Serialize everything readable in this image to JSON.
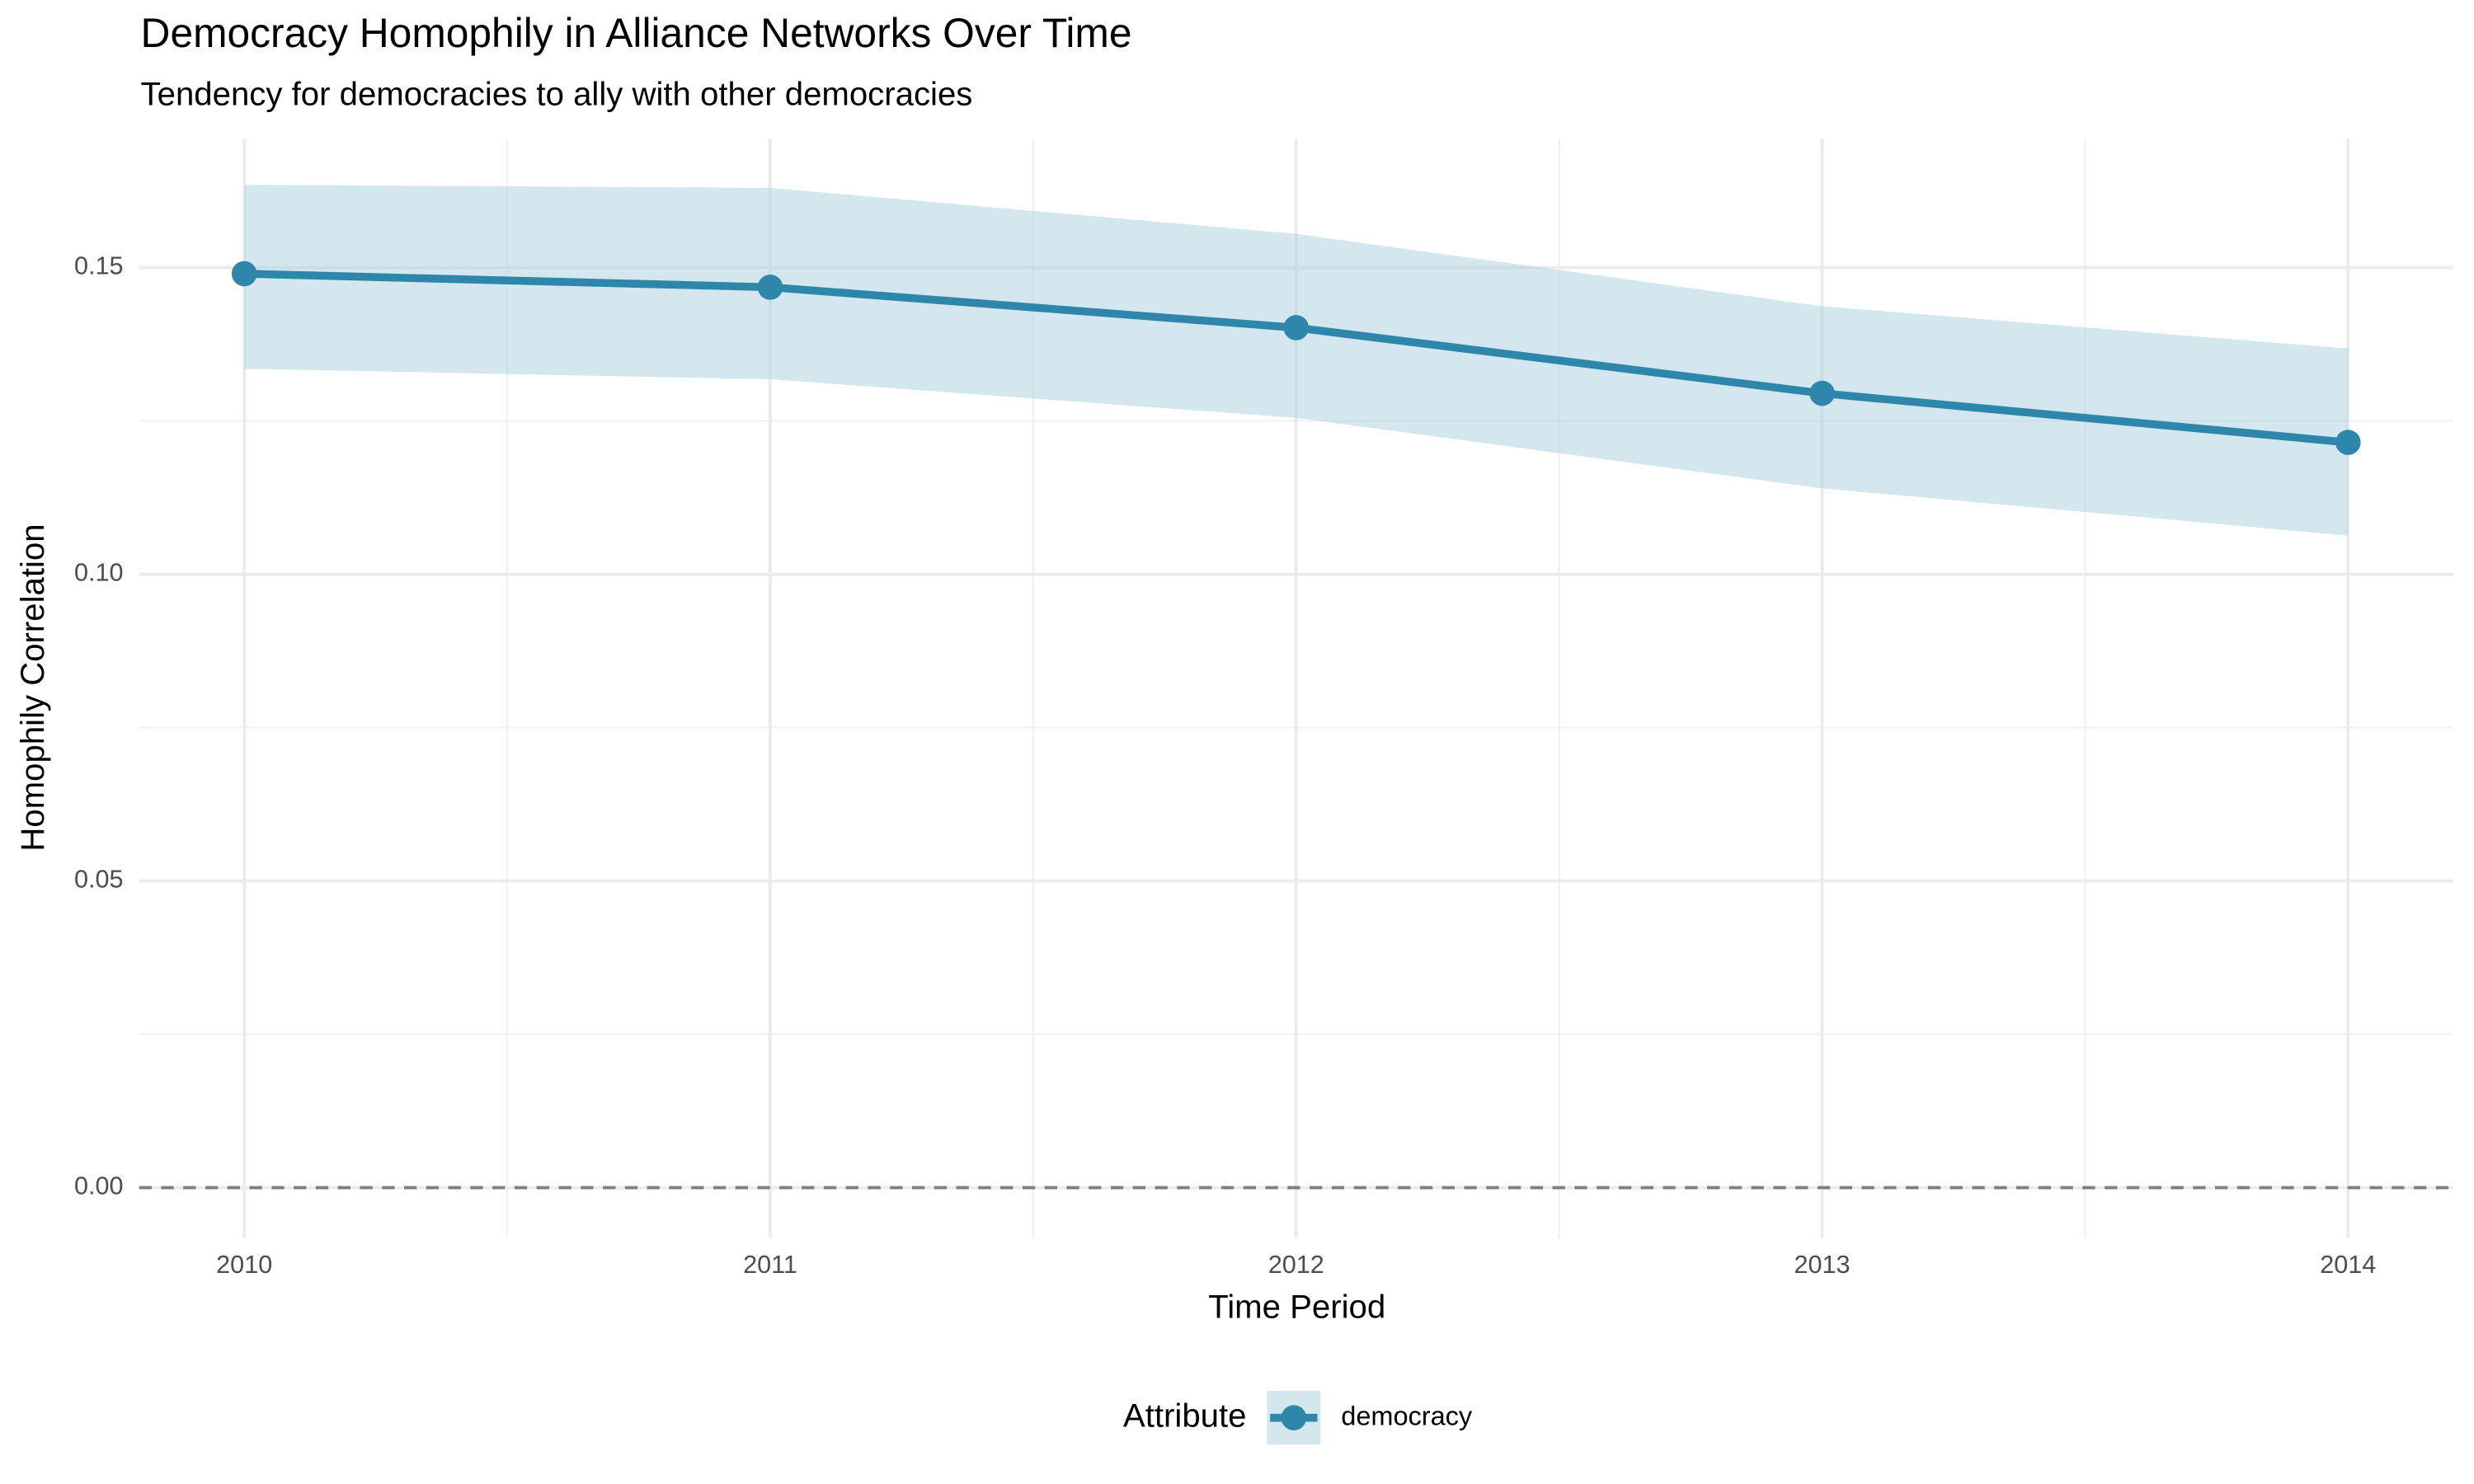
{
  "chart_data": {
    "type": "line",
    "title": "Democracy Homophily in Alliance Networks Over Time",
    "subtitle": "Tendency for democracies to ally with other democracies",
    "x_label": "Time Period",
    "y_label": "Homophily Correlation",
    "x": [
      2010,
      2011,
      2012,
      2013,
      2014
    ],
    "series": [
      {
        "name": "democracy",
        "color": "#2e86ab",
        "values": [
          0.149,
          0.1468,
          0.1402,
          0.1295,
          0.1215
        ],
        "lower": [
          0.1335,
          0.1318,
          0.1255,
          0.114,
          0.1063
        ],
        "upper": [
          0.1635,
          0.163,
          0.1555,
          0.1437,
          0.1368
        ],
        "band_color": "#a9cfe0"
      }
    ],
    "xlim": [
      2009.8,
      2014.2
    ],
    "xticks": [
      2010,
      2011,
      2012,
      2013,
      2014
    ],
    "ylim": [
      -0.0082,
      0.171
    ],
    "yticks": [
      {
        "value": 0,
        "label": "0.00"
      },
      {
        "value": 0.05,
        "label": "0.05"
      },
      {
        "value": 0.1,
        "label": "0.10"
      },
      {
        "value": 0.15,
        "label": "0.15"
      }
    ],
    "hline": 0,
    "grid": true,
    "legend_title": "Attribute",
    "legend_position": "bottom"
  }
}
